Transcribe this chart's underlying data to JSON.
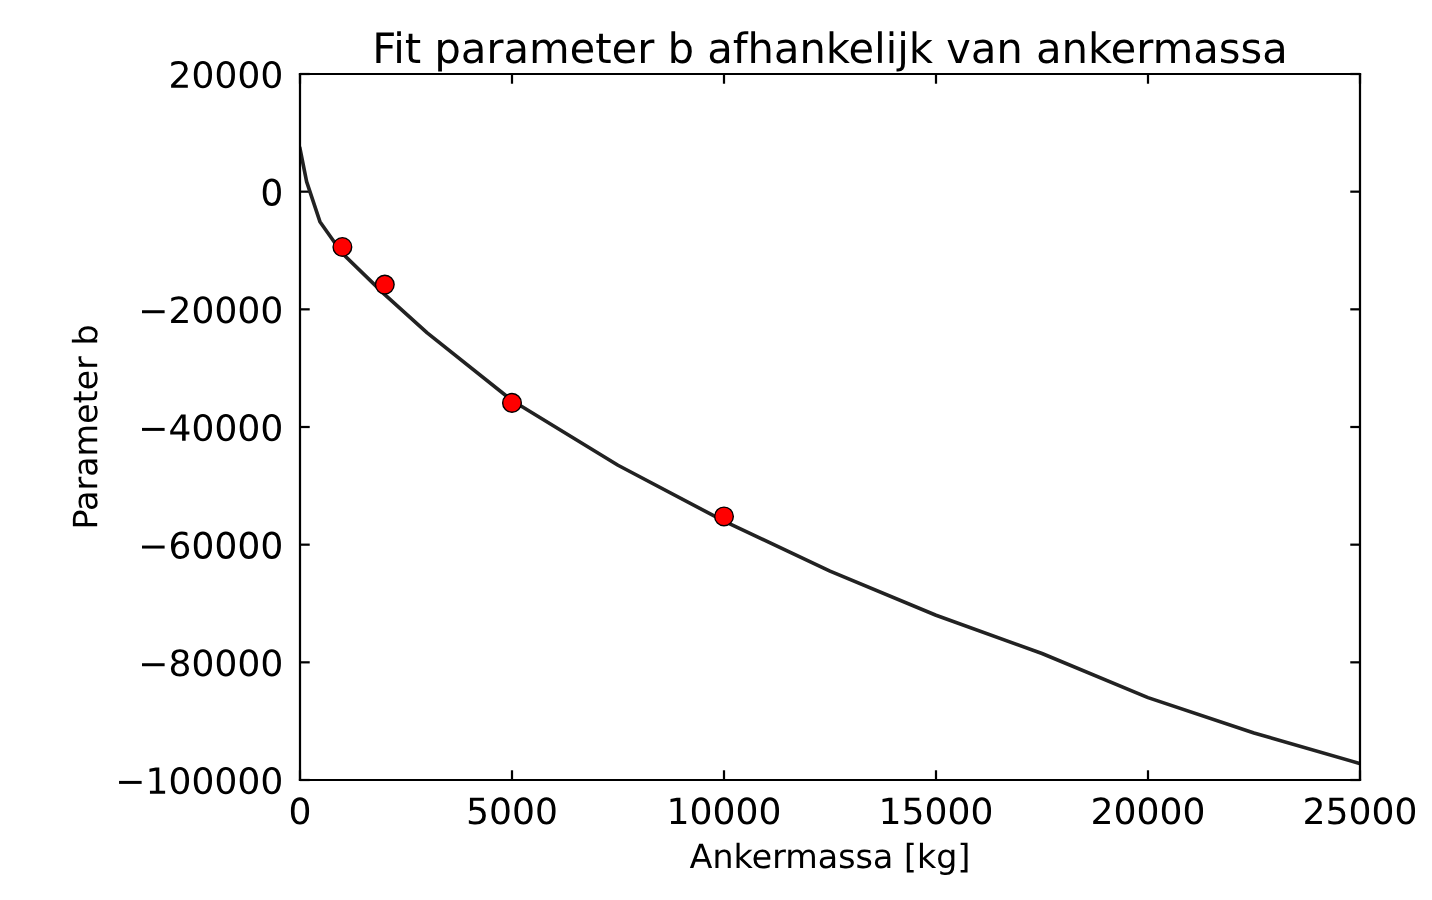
{
  "chart_data": {
    "type": "scatter",
    "title": "Fit parameter b afhankelijk van ankermassa",
    "xlabel": "Ankermassa [kg]",
    "ylabel": "Parameter b",
    "xlim": [
      0,
      25000
    ],
    "ylim": [
      -100000,
      20000
    ],
    "xticks": [
      0,
      5000,
      10000,
      15000,
      20000,
      25000
    ],
    "yticks": [
      -100000,
      -80000,
      -60000,
      -40000,
      -20000,
      0,
      20000
    ],
    "grid": false,
    "legend": false,
    "series": [
      {
        "type": "line",
        "color": "#222222",
        "marker": "none",
        "line_style": "solid",
        "x": [
          0,
          156,
          470,
          1000,
          2000,
          3000,
          5000,
          7500,
          10000,
          12500,
          15000,
          17500,
          20000,
          22500,
          25000
        ],
        "values": [
          7300,
          1700,
          -5100,
          -10500,
          -17500,
          -24000,
          -35500,
          -46500,
          -56000,
          -64500,
          -72000,
          -78500,
          -86000,
          -92000,
          -97200
        ]
      },
      {
        "color": "#ff0000",
        "marker": "circle",
        "x": [
          1000,
          2000,
          5000,
          10000
        ],
        "values": [
          -9400,
          -15800,
          -35900,
          -55200
        ]
      }
    ]
  }
}
